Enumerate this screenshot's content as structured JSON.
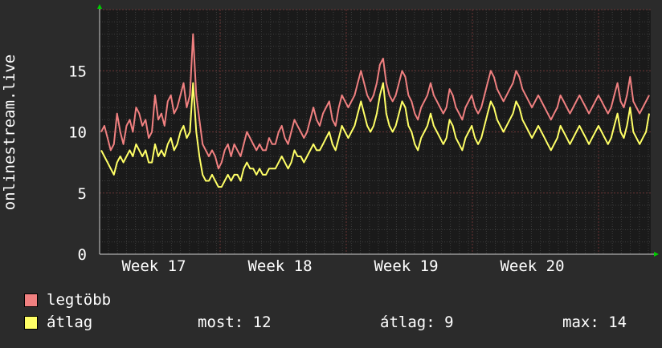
{
  "chart_data": {
    "type": "line",
    "title": "",
    "ylabel": "onlinestream.live",
    "xlabel": "",
    "ylim": [
      0,
      20
    ],
    "y_ticks": [
      "0",
      "5",
      "10",
      "15"
    ],
    "x_ticks": [
      "Week 17",
      "Week 18",
      "Week 19",
      "Week 20"
    ],
    "grid": true,
    "legend_position": "bottom",
    "series": [
      {
        "name": "legtöbb",
        "color": "#f08080",
        "values": [
          10,
          10.5,
          9.5,
          8.5,
          9,
          11.5,
          10,
          9,
          10.5,
          11,
          10,
          12,
          11.5,
          10.5,
          11,
          9.5,
          10,
          13,
          11,
          11.5,
          10.5,
          12.5,
          13,
          11.5,
          12,
          13,
          14,
          12,
          13,
          18,
          13,
          11,
          9,
          8.5,
          8,
          8.5,
          8,
          7,
          7.5,
          8.5,
          9,
          8,
          9,
          8.5,
          8,
          9,
          10,
          9.5,
          9,
          8.5,
          9,
          8.5,
          8.5,
          9.5,
          9,
          9,
          10,
          10.5,
          9.5,
          9,
          10,
          11,
          10.5,
          10,
          9.5,
          10,
          11,
          12,
          11,
          10.5,
          11.5,
          12,
          12.5,
          11,
          10.5,
          12,
          13,
          12.5,
          12,
          12.5,
          13,
          14,
          15,
          14,
          13,
          12.5,
          13,
          14,
          15.5,
          16,
          14,
          13,
          12.5,
          13,
          14,
          15,
          14.5,
          13,
          12.5,
          11.5,
          11,
          12,
          12.5,
          13,
          14,
          13,
          12.5,
          12,
          11.5,
          12,
          13.5,
          13,
          12,
          11.5,
          11,
          12,
          12.5,
          13,
          12,
          11.5,
          12,
          13,
          14,
          15,
          14.5,
          13.5,
          13,
          12.5,
          13,
          13.5,
          14,
          15,
          14.5,
          13.5,
          13,
          12.5,
          12,
          12.5,
          13,
          12.5,
          12,
          11.5,
          11,
          11.5,
          12,
          13,
          12.5,
          12,
          11.5,
          12,
          12.5,
          13,
          12.5,
          12,
          11.5,
          12,
          12.5,
          13,
          12.5,
          12,
          11.5,
          12,
          13,
          14,
          12.5,
          12,
          13,
          14.5,
          12.5,
          12,
          11.5,
          12,
          12.5,
          13
        ]
      },
      {
        "name": "átlag",
        "color": "#ffff66",
        "values": [
          8.5,
          8,
          7.5,
          7,
          6.5,
          7.5,
          8,
          7.5,
          8,
          8.5,
          8,
          9,
          8.5,
          8,
          8.5,
          7.5,
          7.5,
          9,
          8,
          8.5,
          8,
          9,
          9.5,
          8.5,
          9,
          10,
          10.5,
          9.5,
          10,
          14,
          10,
          8,
          6.5,
          6,
          6,
          6.5,
          6,
          5.5,
          5.5,
          6,
          6.5,
          6,
          6.5,
          6.5,
          6,
          7,
          7.5,
          7,
          7,
          6.5,
          7,
          6.5,
          6.5,
          7,
          7,
          7,
          7.5,
          8,
          7.5,
          7,
          7.5,
          8.5,
          8,
          8,
          7.5,
          8,
          8.5,
          9,
          8.5,
          8.5,
          9,
          9.5,
          10,
          9,
          8.5,
          9.5,
          10.5,
          10,
          9.5,
          10,
          10.5,
          11.5,
          12.5,
          11.5,
          10.5,
          10,
          10.5,
          11.5,
          13,
          14,
          11.5,
          10.5,
          10,
          10.5,
          11.5,
          12.5,
          12,
          10.5,
          10,
          9,
          8.5,
          9.5,
          10,
          10.5,
          11.5,
          10.5,
          10,
          9.5,
          9,
          9.5,
          11,
          10.5,
          9.5,
          9,
          8.5,
          9.5,
          10,
          10.5,
          9.5,
          9,
          9.5,
          10.5,
          11.5,
          12.5,
          12,
          11,
          10.5,
          10,
          10.5,
          11,
          11.5,
          12.5,
          12,
          11,
          10.5,
          10,
          9.5,
          10,
          10.5,
          10,
          9.5,
          9,
          8.5,
          9,
          9.5,
          10.5,
          10,
          9.5,
          9,
          9.5,
          10,
          10.5,
          10,
          9.5,
          9,
          9.5,
          10,
          10.5,
          10,
          9.5,
          9,
          9.5,
          10.5,
          11.5,
          10,
          9.5,
          10.5,
          12,
          10,
          9.5,
          9,
          9.5,
          10,
          11.5
        ]
      }
    ]
  },
  "legend": {
    "max_label": "legtöbb",
    "avg_label": "átlag",
    "most": "most: 12",
    "atlag": "átlag: 9",
    "max": "max: 14"
  }
}
